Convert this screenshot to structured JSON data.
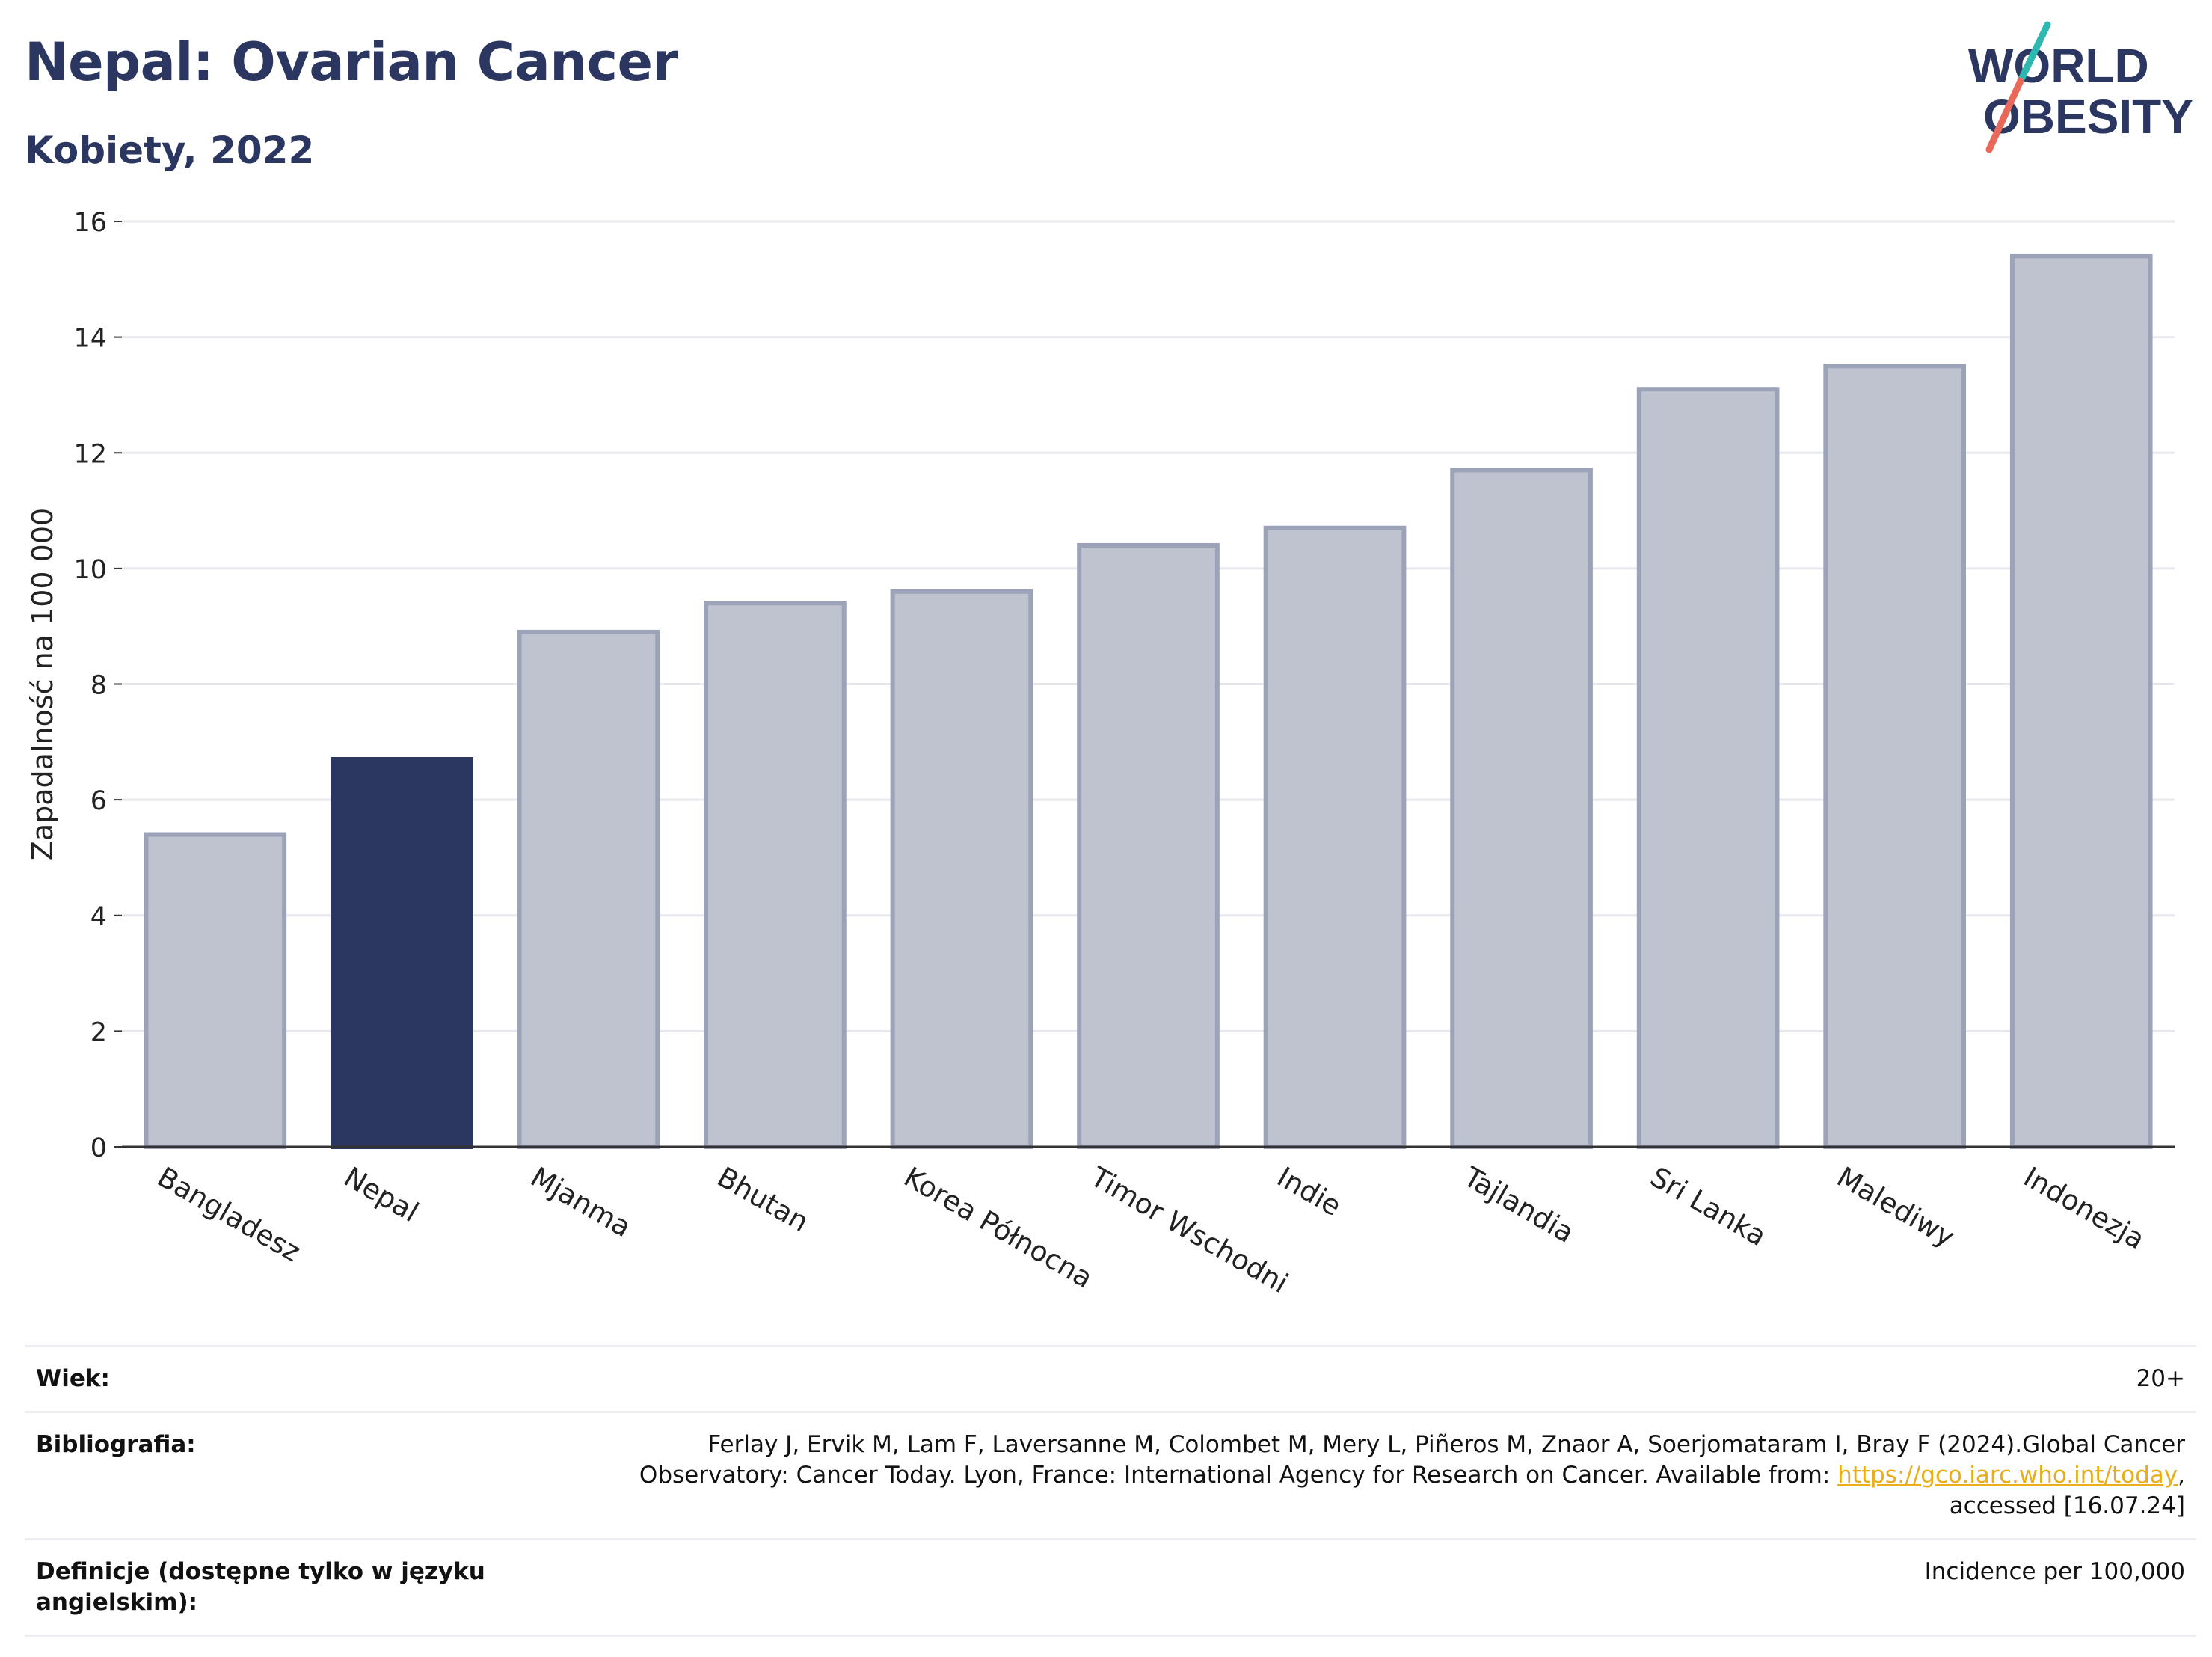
{
  "header": {
    "title": "Nepal: Ovarian Cancer",
    "subtitle": "Kobiety, 2022"
  },
  "logo": {
    "line1": "WORLD",
    "line2": "OBESITY",
    "accent_teal": "#2fb8b0",
    "accent_coral": "#e8695a",
    "text_color": "#2b3761"
  },
  "chart_data": {
    "type": "bar",
    "categories": [
      "Bangladesz",
      "Nepal",
      "Mjanma",
      "Bhutan",
      "Korea Północna",
      "Timor Wschodni",
      "Indie",
      "Tajlandia",
      "Sri Lanka",
      "Malediwy",
      "Indonezja"
    ],
    "values": [
      5.4,
      6.7,
      8.9,
      9.4,
      9.6,
      10.4,
      10.7,
      11.7,
      13.1,
      13.5,
      15.4
    ],
    "highlight": "Nepal",
    "ylabel": "Zapadalność na 100 000",
    "xlabel": "",
    "ylim": [
      0,
      16
    ],
    "yticks": [
      0,
      2,
      4,
      6,
      8,
      10,
      12,
      14,
      16
    ],
    "grid": true,
    "colors": {
      "highlight": "#2b3761",
      "other_fill": "#bfc3d0",
      "other_stroke": "#9ca3b8"
    }
  },
  "info": {
    "age_label": "Wiek:",
    "age_value": "20+",
    "biblio_label": "Bibliografia:",
    "biblio_line1": "Ferlay J, Ervik M, Lam F, Laversanne M, Colombet M, Mery L, Piñeros M, Znaor A, Soerjomataram I, Bray F (2024).Global Cancer",
    "biblio_line2_pre": "Observatory: Cancer Today. Lyon, France: International Agency for Research on Cancer. Available from: ",
    "biblio_link": "https://gco.iarc.who.int/today",
    "biblio_line2_post": ",",
    "biblio_line3": "accessed [16.07.24]",
    "def_label": "Definicje (dostępne tylko w języku angielskim):",
    "def_value": "Incidence per 100,000"
  }
}
